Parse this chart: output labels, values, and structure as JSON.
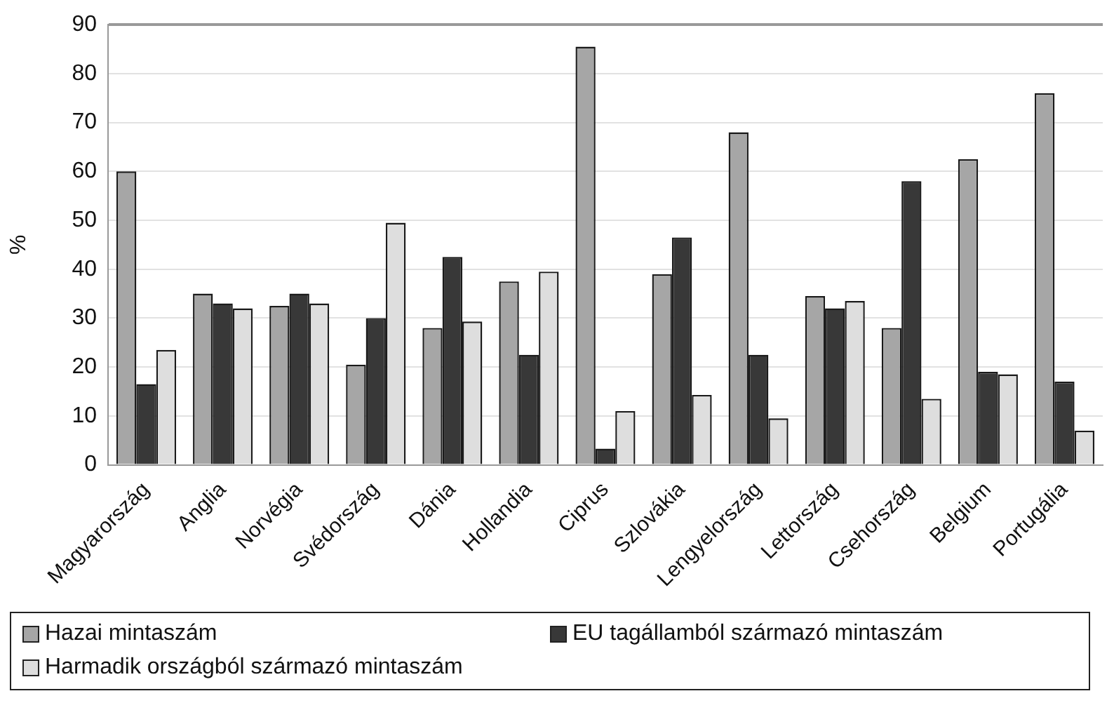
{
  "chart_data": {
    "type": "bar",
    "ylabel": "%",
    "categories": [
      "Magyarország",
      "Anglia",
      "Norvégia",
      "Svédország",
      "Dánia",
      "Hollandia",
      "Ciprus",
      "Szlovákia",
      "Lengyelország",
      "Lettország",
      "Csehország",
      "Belgium",
      "Portugália"
    ],
    "series": [
      {
        "name": "Hazai mintaszám",
        "color": "#a6a6a6",
        "values": [
          60,
          35,
          32.5,
          20.5,
          28,
          37.5,
          85.5,
          39,
          68,
          34.5,
          28,
          62.5,
          76
        ]
      },
      {
        "name": "EU tagállamból származó mintaszám",
        "color": "#383838",
        "values": [
          16.5,
          33,
          35,
          30,
          42.5,
          22.5,
          3.3,
          46.5,
          22.5,
          32,
          58,
          19,
          17
        ]
      },
      {
        "name": "Harmadik országból származó mintaszám",
        "color": "#dedede",
        "values": [
          23.5,
          32,
          33,
          49.5,
          29.3,
          39.5,
          11,
          14.3,
          9.5,
          33.5,
          13.5,
          18.5,
          7
        ]
      }
    ],
    "ylim": [
      0,
      90
    ],
    "yticks": [
      0,
      10,
      20,
      30,
      40,
      50,
      60,
      70,
      80,
      90
    ],
    "grid": "y",
    "legend": "bottom"
  }
}
